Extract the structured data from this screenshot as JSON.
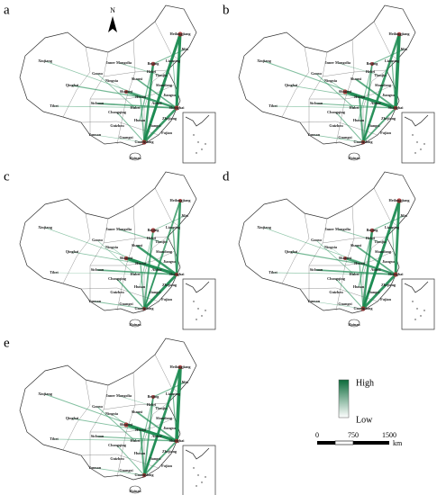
{
  "panels": [
    {
      "label": "a"
    },
    {
      "label": "b"
    },
    {
      "label": "c"
    },
    {
      "label": "d"
    },
    {
      "label": "e"
    }
  ],
  "north": "N",
  "provinces": [
    "Heilongjiang",
    "Jilin",
    "Liaoning",
    "Xinjiang",
    "Inner Mongolia",
    "Qinghai",
    "Tibet",
    "Gansu",
    "Ningxia",
    "Shaanxi",
    "Shanxi",
    "Hebei",
    "Beijing",
    "Tianjin",
    "Shandong",
    "Henan",
    "Hubei",
    "Anhui",
    "Jiangsu",
    "Shanghai",
    "Zhejiang",
    "Sichuan",
    "Chongqing",
    "Guizhou",
    "Yunnan",
    "Hunan",
    "Jiangxi",
    "Fujian",
    "Guangxi",
    "Guangdong",
    "Hainan"
  ],
  "legend": {
    "high": "High",
    "low": "Low"
  },
  "scale": {
    "ticks": [
      0,
      750,
      1500
    ],
    "unit": "km"
  }
}
